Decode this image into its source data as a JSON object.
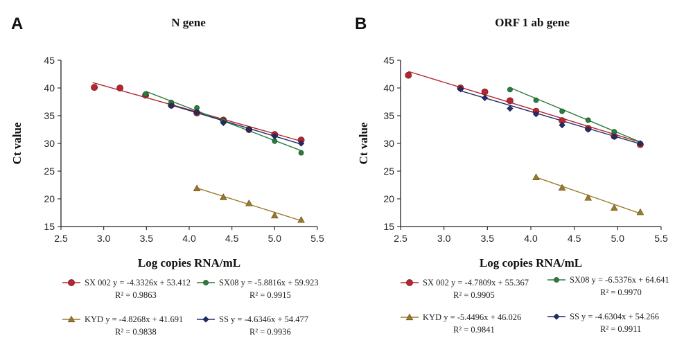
{
  "colors": {
    "SX 002": "#b5262e",
    "SX08": "#2a7d3a",
    "KYD": "#9a7a2a",
    "SS": "#1f2f6e",
    "axis": "#222222"
  },
  "chart_data": [
    {
      "panel_label": "A",
      "type": "scatter",
      "title": "N gene",
      "xlabel": "Log copies RNA/mL",
      "ylabel": "Ct value",
      "xlim": [
        2.5,
        5.5
      ],
      "ylim": [
        15,
        45
      ],
      "xticks": [
        "2.5",
        "3.0",
        "3.5",
        "4.0",
        "4.5",
        "5.0",
        "5.5"
      ],
      "yticks": [
        "15",
        "20",
        "25",
        "30",
        "35",
        "40",
        "45"
      ],
      "grid": false,
      "legend_position": "bottom",
      "series": [
        {
          "name": "SX 002",
          "marker": "circle",
          "x": [
            2.89,
            3.19,
            3.49,
            3.79,
            4.09,
            4.4,
            4.7,
            5.0,
            5.31
          ],
          "y": [
            40.1,
            40.0,
            38.7,
            36.9,
            35.5,
            34.2,
            32.5,
            31.6,
            30.6
          ],
          "fit": {
            "slope": -4.3326,
            "intercept": 53.412,
            "x_range": [
              2.87,
              5.31
            ]
          },
          "equation": "y = -4.3326x + 53.412",
          "r2": "R² = 0.9863"
        },
        {
          "name": "SX08",
          "marker": "circle-small",
          "x": [
            3.49,
            3.79,
            4.09,
            4.4,
            4.7,
            5.0,
            5.31
          ],
          "y": [
            38.9,
            37.4,
            36.4,
            34.1,
            32.6,
            30.4,
            28.3
          ],
          "fit": {
            "slope": -5.8816,
            "intercept": 59.923,
            "x_range": [
              3.49,
              5.31
            ]
          },
          "equation": "y = -5.8816x + 59.923",
          "r2": "R² = 0.9915"
        },
        {
          "name": "KYD",
          "marker": "triangle",
          "x": [
            4.09,
            4.4,
            4.7,
            5.0,
            5.31
          ],
          "y": [
            21.9,
            20.3,
            19.2,
            17.0,
            16.2
          ],
          "fit": {
            "slope": -4.8268,
            "intercept": 41.691,
            "x_range": [
              4.09,
              5.31
            ]
          },
          "equation": "y = -4.8268x + 41.691",
          "r2": "R² = 0.9838"
        },
        {
          "name": "SS",
          "marker": "diamond",
          "x": [
            3.79,
            4.09,
            4.4,
            4.7,
            5.0,
            5.31
          ],
          "y": [
            36.8,
            35.6,
            33.7,
            32.5,
            31.3,
            30.0
          ],
          "fit": {
            "slope": -4.6346,
            "intercept": 54.477,
            "x_range": [
              3.79,
              5.31
            ]
          },
          "equation": "y = -4.6346x + 54.477",
          "r2": "R² = 0.9936"
        }
      ]
    },
    {
      "panel_label": "B",
      "type": "scatter",
      "title": "ORF 1 ab gene",
      "xlabel": "Log copies RNA/mL",
      "ylabel": "Ct value",
      "xlim": [
        2.5,
        5.5
      ],
      "ylim": [
        15,
        45
      ],
      "xticks": [
        "2.5",
        "3.0",
        "3.5",
        "4.0",
        "4.5",
        "5.0",
        "5.5"
      ],
      "yticks": [
        "15",
        "20",
        "25",
        "30",
        "35",
        "40",
        "45"
      ],
      "grid": false,
      "legend_position": "bottom",
      "series": [
        {
          "name": "SX 002",
          "marker": "circle",
          "x": [
            2.59,
            3.19,
            3.47,
            3.76,
            4.06,
            4.36,
            4.66,
            4.96,
            5.26
          ],
          "y": [
            42.3,
            40.0,
            39.3,
            37.7,
            35.8,
            34.1,
            32.7,
            31.3,
            29.8
          ],
          "fit": {
            "slope": -4.7809,
            "intercept": 55.367,
            "x_range": [
              2.59,
              5.26
            ]
          },
          "equation": "y = -4.7809x + 55.367",
          "r2": "R² = 0.9905"
        },
        {
          "name": "SX08",
          "marker": "circle-small",
          "x": [
            3.76,
            4.06,
            4.36,
            4.66,
            4.96,
            5.26
          ],
          "y": [
            39.7,
            37.8,
            35.8,
            34.2,
            32.1,
            30.0
          ],
          "fit": {
            "slope": -6.5376,
            "intercept": 64.641,
            "x_range": [
              3.76,
              5.26
            ]
          },
          "equation": "y = -6.5376x + 64.641",
          "r2": "R² = 0.9970"
        },
        {
          "name": "KYD",
          "marker": "triangle",
          "x": [
            4.06,
            4.36,
            4.66,
            4.96,
            5.26
          ],
          "y": [
            23.9,
            22.0,
            20.2,
            18.4,
            17.6
          ],
          "fit": {
            "slope": -5.4496,
            "intercept": 46.026,
            "x_range": [
              4.06,
              5.26
            ]
          },
          "equation": "y = -5.4496x + 46.026",
          "r2": "R² = 0.9841"
        },
        {
          "name": "SS",
          "marker": "diamond",
          "x": [
            3.19,
            3.47,
            3.76,
            4.06,
            4.36,
            4.66,
            4.96,
            5.26
          ],
          "y": [
            39.8,
            38.2,
            36.3,
            35.3,
            33.3,
            32.5,
            31.2,
            30.0
          ],
          "fit": {
            "slope": -4.6304,
            "intercept": 54.266,
            "x_range": [
              3.19,
              5.26
            ]
          },
          "equation": "y = -4.6304x + 54.266",
          "r2": "R² = 0.9911"
        }
      ]
    }
  ]
}
